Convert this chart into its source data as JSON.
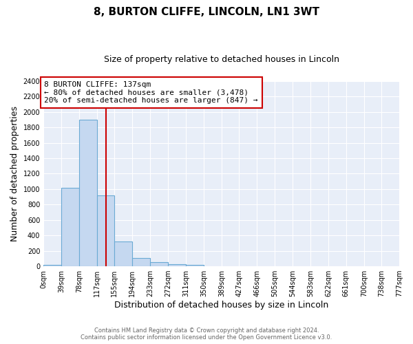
{
  "title": "8, BURTON CLIFFE, LINCOLN, LN1 3WT",
  "subtitle": "Size of property relative to detached houses in Lincoln",
  "xlabel": "Distribution of detached houses by size in Lincoln",
  "ylabel": "Number of detached properties",
  "bin_edges": [
    0,
    39,
    78,
    117,
    155,
    194,
    233,
    272,
    311,
    350,
    389,
    427,
    466,
    505,
    544,
    583,
    622,
    661,
    700,
    738,
    777
  ],
  "bin_labels": [
    "0sqm",
    "39sqm",
    "78sqm",
    "117sqm",
    "155sqm",
    "194sqm",
    "233sqm",
    "272sqm",
    "311sqm",
    "350sqm",
    "389sqm",
    "427sqm",
    "466sqm",
    "505sqm",
    "544sqm",
    "583sqm",
    "622sqm",
    "661sqm",
    "700sqm",
    "738sqm",
    "777sqm"
  ],
  "bar_heights": [
    20,
    1020,
    1900,
    920,
    320,
    105,
    50,
    25,
    20,
    0,
    0,
    0,
    0,
    0,
    0,
    0,
    0,
    0,
    0,
    0
  ],
  "bar_color": "#c5d8f0",
  "bar_edge_color": "#6aaad4",
  "property_line_x": 137,
  "property_line_color": "#cc0000",
  "annotation_title": "8 BURTON CLIFFE: 137sqm",
  "annotation_line1": "← 80% of detached houses are smaller (3,478)",
  "annotation_line2": "20% of semi-detached houses are larger (847) →",
  "annotation_box_facecolor": "#ffffff",
  "annotation_box_edgecolor": "#cc0000",
  "ylim": [
    0,
    2400
  ],
  "yticks": [
    0,
    200,
    400,
    600,
    800,
    1000,
    1200,
    1400,
    1600,
    1800,
    2000,
    2200,
    2400
  ],
  "plot_bg_color": "#e8eef8",
  "figure_bg_color": "#ffffff",
  "grid_color": "#ffffff",
  "footer_line1": "Contains HM Land Registry data © Crown copyright and database right 2024.",
  "footer_line2": "Contains public sector information licensed under the Open Government Licence v3.0.",
  "title_fontsize": 11,
  "subtitle_fontsize": 9,
  "axis_label_fontsize": 9,
  "tick_fontsize": 7,
  "footer_fontsize": 6,
  "annotation_fontsize": 8
}
